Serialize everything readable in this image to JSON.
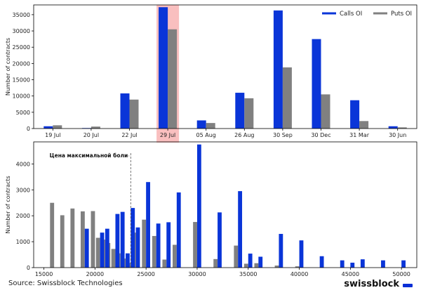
{
  "colors": {
    "calls": "#0a35d8",
    "puts": "#808080",
    "highlight": "#f8b4b4",
    "frame": "#000000"
  },
  "footer": {
    "source": "Source: Swissblock Technologies",
    "brand": "swissblock"
  },
  "chart_data": [
    {
      "type": "bar",
      "title": "",
      "xlabel": "",
      "ylabel": "Number of contracts",
      "ylim": [
        0,
        38000
      ],
      "yticks": [
        0,
        5000,
        10000,
        15000,
        20000,
        25000,
        30000,
        35000
      ],
      "categories": [
        "19 Jul",
        "20 Jul",
        "22 Jul",
        "29 Jul",
        "05 Aug",
        "26 Aug",
        "30 Sep",
        "30 Dec",
        "31 Mar",
        "30 Jun"
      ],
      "highlight_category": "29 Jul",
      "legend": [
        "Calls OI",
        "Puts OI"
      ],
      "legend_position": "top-right",
      "series": [
        {
          "name": "Calls OI",
          "values": [
            700,
            150,
            10800,
            37300,
            2500,
            11000,
            36300,
            27500,
            8700,
            700
          ]
        },
        {
          "name": "Puts OI",
          "values": [
            1000,
            600,
            8900,
            30500,
            1700,
            9300,
            18800,
            10500,
            2300,
            350
          ]
        }
      ]
    },
    {
      "type": "bar",
      "title": "",
      "xlabel": "",
      "ylabel": "Number of contracts",
      "xlim": [
        14000,
        51500
      ],
      "ylim": [
        0,
        4850
      ],
      "xticks": [
        15000,
        20000,
        25000,
        30000,
        35000,
        40000,
        45000,
        50000
      ],
      "xtick_labels": [
        "15000",
        "20000",
        "25000",
        "30000",
        "35000",
        "40000",
        "45000",
        "50000"
      ],
      "yticks": [
        0,
        1000,
        2000,
        3000,
        4000
      ],
      "annotation": {
        "text": "Цена максимальной боли",
        "x": 23500
      },
      "series": [
        {
          "name": "Calls OI",
          "x": [
            19000,
            20500,
            21000,
            22000,
            22500,
            23000,
            23500,
            24000,
            25000,
            26000,
            27000,
            28000,
            30000,
            32000,
            34000,
            35000,
            36000,
            38000,
            40000,
            42000,
            44000,
            45000,
            46000,
            48000,
            50000
          ],
          "values": [
            1500,
            1350,
            1500,
            2070,
            2150,
            550,
            2300,
            1550,
            3300,
            1700,
            1750,
            2900,
            4750,
            2130,
            2950,
            540,
            420,
            1300,
            1050,
            440,
            280,
            190,
            320,
            280,
            280
          ]
        },
        {
          "name": "Puts OI",
          "x": [
            16000,
            17000,
            18000,
            19000,
            20000,
            20500,
            21000,
            21500,
            22000,
            22500,
            23000,
            23500,
            24000,
            25000,
            26000,
            27000,
            28000,
            30000,
            32000,
            34000,
            35000,
            36000,
            38000,
            40000
          ],
          "values": [
            2500,
            2020,
            2280,
            2170,
            2180,
            1150,
            1080,
            950,
            720,
            550,
            350,
            180,
            1350,
            1850,
            1220,
            310,
            880,
            1760,
            330,
            850,
            150,
            170,
            80,
            50
          ]
        }
      ]
    }
  ]
}
